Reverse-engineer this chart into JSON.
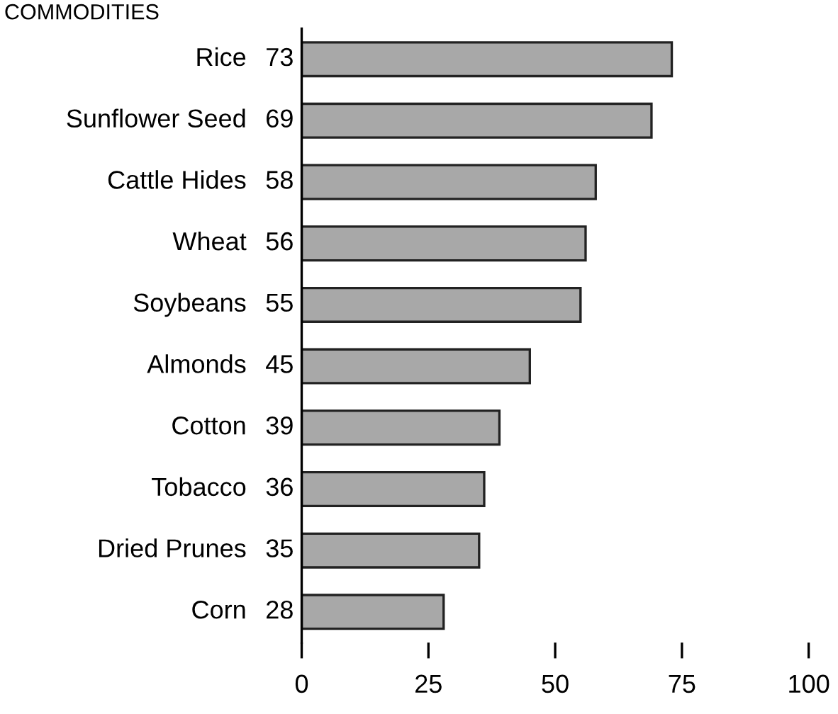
{
  "chart_data": {
    "type": "bar",
    "orientation": "horizontal",
    "title": "COMMODITIES",
    "categories": [
      "Rice",
      "Sunflower Seed",
      "Cattle Hides",
      "Wheat",
      "Soybeans",
      "Almonds",
      "Cotton",
      "Tobacco",
      "Dried Prunes",
      "Corn"
    ],
    "values": [
      73,
      69,
      58,
      56,
      55,
      45,
      39,
      36,
      35,
      28
    ],
    "color": "#a8a8a8",
    "data_labels": true,
    "grid": false,
    "legend": false,
    "xlim": [
      0,
      100
    ],
    "xticks": [
      0,
      25,
      50,
      75,
      100
    ]
  }
}
